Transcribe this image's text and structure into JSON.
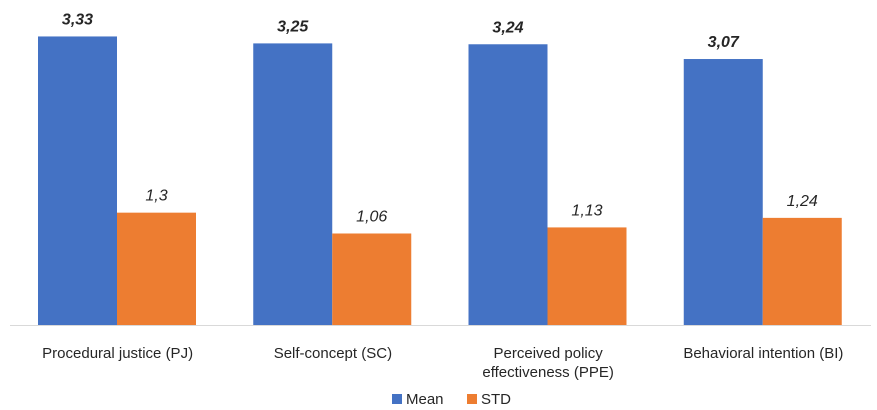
{
  "chart_data": {
    "type": "bar",
    "categories": [
      "Procedural justice (PJ)",
      "Self-concept (SC)",
      "Perceived policy effectiveness (PPE)",
      "Behavioral intention (BI)"
    ],
    "category_lines": [
      [
        "Procedural justice (PJ)"
      ],
      [
        "Self-concept (SC)"
      ],
      [
        "Perceived policy",
        "effectiveness (PPE)"
      ],
      [
        "Behavioral intention (BI)"
      ]
    ],
    "series": [
      {
        "name": "Mean",
        "color": "#4472C4",
        "values": [
          3.33,
          3.25,
          3.24,
          3.07
        ],
        "labels": [
          "3,33",
          "3,25",
          "3,24",
          "3,07"
        ]
      },
      {
        "name": "STD",
        "color": "#ED7D31",
        "values": [
          1.3,
          1.06,
          1.13,
          1.24
        ],
        "labels": [
          "1,3",
          "1,06",
          "1,13",
          "1,24"
        ]
      }
    ],
    "title": "",
    "xlabel": "",
    "ylabel": "",
    "ylim": [
      0,
      3.5
    ],
    "grid": false,
    "legend": "bottom-center"
  }
}
